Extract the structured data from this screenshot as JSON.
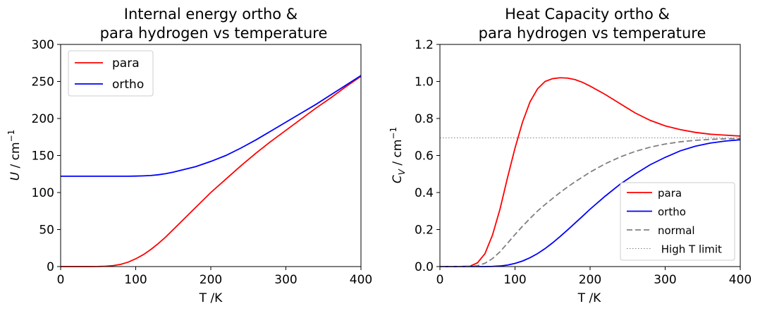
{
  "chart_data": [
    {
      "type": "line",
      "title_line1": "Internal energy ortho &",
      "title_line2": "para hydrogen vs temperature",
      "xlabel": "T /K",
      "ylabel_sym": "U",
      "ylabel_unit": " / cm",
      "ylabel_exp": "−1",
      "xlim": [
        0,
        400
      ],
      "ylim": [
        0,
        300
      ],
      "xticks": [
        "0",
        "100",
        "200",
        "300",
        "400"
      ],
      "yticks": [
        "0",
        "50",
        "100",
        "150",
        "200",
        "250",
        "300"
      ],
      "legend_position": "upper-left",
      "x": [
        0,
        20,
        40,
        50,
        60,
        70,
        80,
        90,
        100,
        110,
        120,
        130,
        140,
        150,
        160,
        180,
        200,
        220,
        240,
        260,
        280,
        300,
        320,
        340,
        360,
        380,
        400
      ],
      "series": [
        {
          "name": "para",
          "color": "#ff0000",
          "dash": "solid",
          "values": [
            0,
            0,
            0,
            0.1,
            0.5,
            1.3,
            3,
            6,
            10.5,
            16,
            23,
            31,
            40,
            50,
            60,
            80,
            100,
            118,
            136,
            153,
            169,
            184,
            199,
            214,
            228,
            243,
            257
          ]
        },
        {
          "name": "ortho",
          "color": "#0000ff",
          "dash": "solid",
          "values": [
            122,
            122,
            122,
            122,
            122,
            122,
            122,
            122,
            122.2,
            122.5,
            123,
            124,
            125.5,
            127.5,
            130,
            135,
            142,
            150,
            160,
            171,
            183,
            195,
            207,
            219,
            232,
            245,
            258
          ]
        }
      ]
    },
    {
      "type": "line",
      "title_line1": "Heat Capacity ortho &",
      "title_line2": "para hydrogen vs temperature",
      "xlabel": "T /K",
      "ylabel_sym": "C",
      "ylabel_sub": "V",
      "ylabel_unit": " / cm",
      "ylabel_exp": "−1",
      "xlim": [
        0,
        400
      ],
      "ylim": [
        0,
        1.2
      ],
      "xticks": [
        "0",
        "100",
        "200",
        "300",
        "400"
      ],
      "yticks": [
        "0.0",
        "0.2",
        "0.4",
        "0.6",
        "0.8",
        "1.0",
        "1.2"
      ],
      "legend_position": "lower-right",
      "x": [
        0,
        20,
        40,
        50,
        60,
        70,
        80,
        90,
        100,
        110,
        120,
        130,
        140,
        150,
        160,
        170,
        180,
        190,
        200,
        220,
        240,
        260,
        280,
        300,
        320,
        340,
        360,
        380,
        400
      ],
      "series": [
        {
          "name": "para",
          "color": "#ff0000",
          "dash": "solid",
          "values": [
            0,
            0,
            0.002,
            0.02,
            0.07,
            0.17,
            0.31,
            0.48,
            0.64,
            0.78,
            0.89,
            0.96,
            1.0,
            1.015,
            1.02,
            1.018,
            1.01,
            0.995,
            0.975,
            0.93,
            0.88,
            0.83,
            0.79,
            0.76,
            0.74,
            0.725,
            0.715,
            0.71,
            0.705
          ]
        },
        {
          "name": "ortho",
          "color": "#0000ff",
          "dash": "solid",
          "values": [
            0,
            0,
            0,
            0,
            0,
            0.001,
            0.003,
            0.008,
            0.017,
            0.03,
            0.048,
            0.07,
            0.097,
            0.128,
            0.162,
            0.198,
            0.235,
            0.272,
            0.31,
            0.38,
            0.445,
            0.5,
            0.55,
            0.59,
            0.625,
            0.65,
            0.667,
            0.678,
            0.685
          ]
        },
        {
          "name": "normal",
          "color": "#808080",
          "dash": "dashed",
          "values": [
            0,
            0,
            0.001,
            0.005,
            0.018,
            0.043,
            0.08,
            0.126,
            0.173,
            0.218,
            0.26,
            0.3,
            0.335,
            0.368,
            0.4,
            0.43,
            0.458,
            0.484,
            0.51,
            0.555,
            0.592,
            0.622,
            0.645,
            0.662,
            0.674,
            0.682,
            0.687,
            0.69,
            0.692
          ]
        },
        {
          "name": " High T limit",
          "color": "#808080",
          "dash": "dotted",
          "values": [
            0.695,
            0.695,
            0.695,
            0.695,
            0.695,
            0.695,
            0.695,
            0.695,
            0.695,
            0.695,
            0.695,
            0.695,
            0.695,
            0.695,
            0.695,
            0.695,
            0.695,
            0.695,
            0.695,
            0.695,
            0.695,
            0.695,
            0.695,
            0.695,
            0.695,
            0.695,
            0.695,
            0.695,
            0.695
          ]
        }
      ]
    }
  ]
}
